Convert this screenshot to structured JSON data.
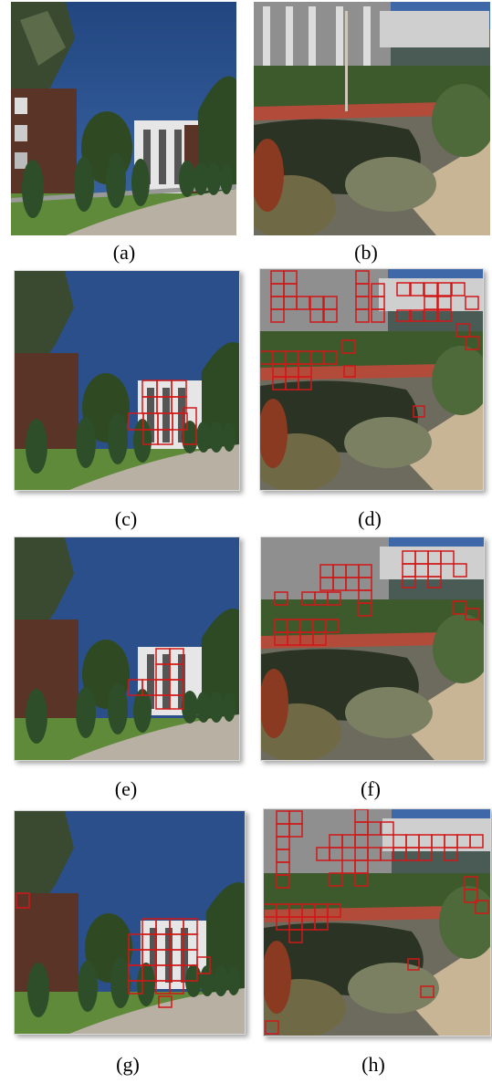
{
  "panels": [
    {
      "id": "a",
      "caption": "(a)",
      "scene": "building",
      "boxes": false
    },
    {
      "id": "b",
      "caption": "(b)",
      "scene": "pond",
      "boxes": false
    },
    {
      "id": "c",
      "caption": "(c)",
      "scene": "building",
      "boxes": true
    },
    {
      "id": "d",
      "caption": "(d)",
      "scene": "pond",
      "boxes": true
    },
    {
      "id": "e",
      "caption": "(e)",
      "scene": "building",
      "boxes": true
    },
    {
      "id": "f",
      "caption": "(f)",
      "scene": "pond",
      "boxes": true
    },
    {
      "id": "g",
      "caption": "(g)",
      "scene": "building",
      "boxes": true
    },
    {
      "id": "h",
      "caption": "(h)",
      "scene": "pond",
      "boxes": true
    }
  ],
  "colors": {
    "box": "#d01818",
    "sky": "#2b4f8a",
    "grass": "#5f8a3a"
  }
}
